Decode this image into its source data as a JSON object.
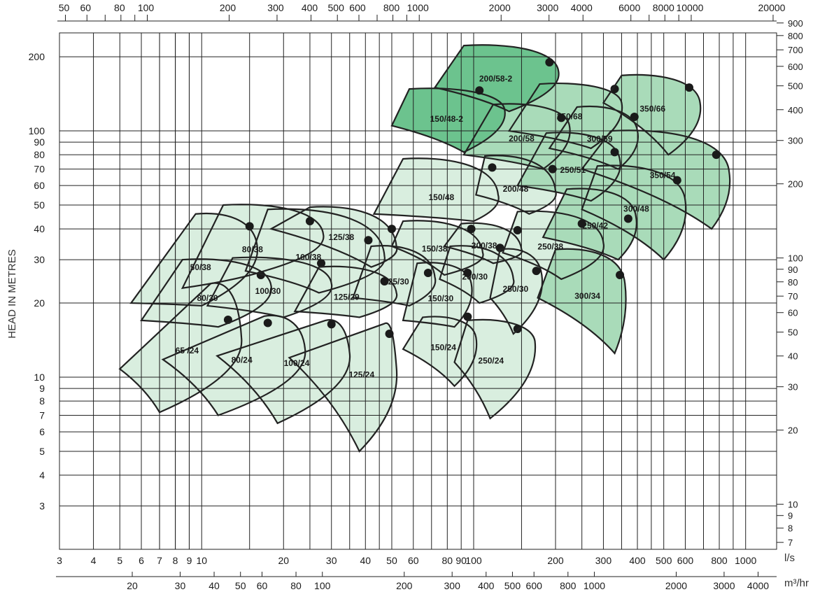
{
  "chart_data": {
    "type": "area",
    "title": "",
    "ylabel": "HEAD IN METRES",
    "units_bottom": "l/s",
    "units_lower": "m³/hr",
    "x_ls_range": [
      3,
      1300
    ],
    "y_m_range": [
      2.0,
      250
    ],
    "scale": "log-log",
    "ticks": {
      "left": [
        {
          "v": 200,
          "t": "200"
        },
        {
          "v": 100,
          "t": "100"
        },
        {
          "v": 90,
          "t": "90"
        },
        {
          "v": 80,
          "t": "80"
        },
        {
          "v": 70,
          "t": "70"
        },
        {
          "v": 60,
          "t": "60"
        },
        {
          "v": 50,
          "t": "50"
        },
        {
          "v": 40,
          "t": "40"
        },
        {
          "v": 30,
          "t": "30"
        },
        {
          "v": 20,
          "t": "20"
        },
        {
          "v": 10,
          "t": "10"
        },
        {
          "v": 9,
          "t": "9"
        },
        {
          "v": 8,
          "t": "8"
        },
        {
          "v": 7,
          "t": "7"
        },
        {
          "v": 6,
          "t": "6"
        },
        {
          "v": 5,
          "t": "5"
        },
        {
          "v": 4,
          "t": "4"
        },
        {
          "v": 3,
          "t": "3"
        }
      ],
      "bottom_ls": [
        {
          "v": 3,
          "t": "3"
        },
        {
          "v": 4,
          "t": "4"
        },
        {
          "v": 5,
          "t": "5"
        },
        {
          "v": 6,
          "t": "6"
        },
        {
          "v": 7,
          "t": "7"
        },
        {
          "v": 8,
          "t": "8"
        },
        {
          "v": 9,
          "t": "9"
        },
        {
          "v": 10,
          "t": "10"
        },
        {
          "v": 20,
          "t": "20"
        },
        {
          "v": 30,
          "t": "30"
        },
        {
          "v": 40,
          "t": "40"
        },
        {
          "v": 50,
          "t": "50"
        },
        {
          "v": 60,
          "t": "60"
        },
        {
          "v": 80,
          "t": "80"
        },
        {
          "v": 90,
          "t": "90"
        },
        {
          "v": 100,
          "t": "100"
        },
        {
          "v": 200,
          "t": "200"
        },
        {
          "v": 300,
          "t": "300"
        },
        {
          "v": 400,
          "t": "400"
        },
        {
          "v": 500,
          "t": "500"
        },
        {
          "v": 600,
          "t": "600"
        },
        {
          "v": 800,
          "t": "800"
        },
        {
          "v": 1000,
          "t": "1000"
        }
      ],
      "lower_m3hr": [
        {
          "v": 20,
          "t": "20"
        },
        {
          "v": 30,
          "t": "30"
        },
        {
          "v": 40,
          "t": "40"
        },
        {
          "v": 50,
          "t": "50"
        },
        {
          "v": 60,
          "t": "60"
        },
        {
          "v": 80,
          "t": "80"
        },
        {
          "v": 100,
          "t": "100"
        },
        {
          "v": 200,
          "t": "200"
        },
        {
          "v": 300,
          "t": "300"
        },
        {
          "v": 400,
          "t": "400"
        },
        {
          "v": 500,
          "t": "500"
        },
        {
          "v": 600,
          "t": "600"
        },
        {
          "v": 800,
          "t": "800"
        },
        {
          "v": 1000,
          "t": "1000"
        },
        {
          "v": 2000,
          "t": "2000"
        },
        {
          "v": 3000,
          "t": "3000"
        },
        {
          "v": 4000,
          "t": "4000"
        }
      ],
      "top_usgpm": [
        {
          "v": 50,
          "t": "50"
        },
        {
          "v": 60,
          "t": "60"
        },
        {
          "v": 80,
          "t": "80"
        },
        {
          "v": 100,
          "t": "100"
        },
        {
          "v": 200,
          "t": "200"
        },
        {
          "v": 300,
          "t": "300"
        },
        {
          "v": 400,
          "t": "400"
        },
        {
          "v": 500,
          "t": "500"
        },
        {
          "v": 600,
          "t": "600"
        },
        {
          "v": 800,
          "t": "800"
        },
        {
          "v": 1000,
          "t": "1000"
        },
        {
          "v": 2000,
          "t": "2000"
        },
        {
          "v": 3000,
          "t": "3000"
        },
        {
          "v": 4000,
          "t": "4000"
        },
        {
          "v": 6000,
          "t": "6000"
        },
        {
          "v": 8000,
          "t": "8000"
        },
        {
          "v": 10000,
          "t": "10000"
        },
        {
          "v": 20000,
          "t": "20000"
        }
      ],
      "right_ft": [
        {
          "v": 900,
          "t": "900"
        },
        {
          "v": 800,
          "t": "800"
        },
        {
          "v": 700,
          "t": "700"
        },
        {
          "v": 600,
          "t": "600"
        },
        {
          "v": 500,
          "t": "500"
        },
        {
          "v": 400,
          "t": "400"
        },
        {
          "v": 300,
          "t": "300"
        },
        {
          "v": 200,
          "t": "200"
        },
        {
          "v": 100,
          "t": "100"
        },
        {
          "v": 90,
          "t": "90"
        },
        {
          "v": 80,
          "t": "80"
        },
        {
          "v": 70,
          "t": "70"
        },
        {
          "v": 60,
          "t": "60"
        },
        {
          "v": 50,
          "t": "50"
        },
        {
          "v": 40,
          "t": "40"
        },
        {
          "v": 30,
          "t": "30"
        },
        {
          "v": 20,
          "t": "20"
        },
        {
          "v": 10,
          "t": "10"
        },
        {
          "v": 9,
          "t": "9"
        },
        {
          "v": 8,
          "t": "8"
        },
        {
          "v": 7,
          "t": "7"
        }
      ]
    },
    "colors": {
      "light": "#d9eedf",
      "mid": "#a9dbb9",
      "dark": "#6cc38e"
    },
    "series": [
      {
        "name": "65 /24",
        "shade": "light",
        "Q": [
          5.0,
          10.8,
          14.0,
          7.0,
          12.5
        ],
        "H": [
          10.8,
          24.0,
          14.5,
          7.2,
          17.1
        ]
      },
      {
        "name": "80/24",
        "shade": "light",
        "Q": [
          7.2,
          17.0,
          24.0,
          11.5,
          17.5
        ],
        "H": [
          11.8,
          17.7,
          13.0,
          7.0,
          16.6
        ]
      },
      {
        "name": "100/24",
        "shade": "light",
        "Q": [
          11.4,
          28.5,
          35.0,
          19.0,
          30.0
        ],
        "H": [
          12.2,
          17.0,
          12.5,
          6.5,
          16.4
        ]
      },
      {
        "name": "125/24",
        "shade": "light",
        "Q": [
          21.0,
          47.0,
          52.0,
          38.0,
          49.0
        ],
        "H": [
          12.0,
          16.5,
          11.0,
          5.0,
          15.0
        ]
      },
      {
        "name": "50/38",
        "shade": "light",
        "Q": [
          5.5,
          9.5,
          16.0,
          10.0,
          15.0
        ],
        "H": [
          20.0,
          46.0,
          34.0,
          19.5,
          41.0
        ]
      },
      {
        "name": "80/30",
        "shade": "light",
        "Q": [
          6.0,
          8.5,
          18.0,
          11.5,
          16.5
        ],
        "H": [
          17.0,
          30.0,
          23.5,
          16.0,
          26.0
        ]
      },
      {
        "name": "100/30",
        "shade": "light",
        "Q": [
          10.5,
          13.0,
          30.0,
          20.0,
          27.5
        ],
        "H": [
          19.5,
          30.5,
          24.0,
          17.5,
          29.0
        ]
      },
      {
        "name": "80/38",
        "shade": "light",
        "Q": [
          8.5,
          12.0,
          28.0,
          17.0,
          25.0
        ],
        "H": [
          23.0,
          50.0,
          38.0,
          27.0,
          43.0
        ]
      },
      {
        "name": "100/38",
        "shade": "light",
        "Q": [
          14.5,
          17.5,
          47.0,
          27.0,
          41.0
        ],
        "H": [
          27.0,
          48.0,
          31.0,
          22.0,
          36.0
        ]
      },
      {
        "name": "125/38",
        "shade": "light",
        "Q": [
          18.0,
          25.0,
          52.0,
          42.0,
          50.0
        ],
        "H": [
          40.0,
          49.0,
          34.0,
          28.0,
          40.0
        ]
      },
      {
        "name": "125/29",
        "shade": "light",
        "Q": [
          22.0,
          27.0,
          52.0,
          38.0,
          47.0
        ],
        "H": [
          18.5,
          28.0,
          22.0,
          17.5,
          24.5
        ]
      },
      {
        "name": "125/30",
        "shade": "light",
        "Q": [
          36.0,
          42.0,
          72.0,
          58.0,
          68.0
        ],
        "H": [
          21.0,
          34.0,
          25.5,
          19.5,
          26.5
        ]
      },
      {
        "name": "150/30",
        "shade": "light",
        "Q": [
          55.0,
          62.0,
          98.0,
          85.0,
          95.0
        ],
        "H": [
          17.0,
          29.0,
          24.0,
          16.0,
          26.5
        ]
      },
      {
        "name": "150/24",
        "shade": "light",
        "Q": [
          55.0,
          65.0,
          102.0,
          85.0,
          95.0
        ],
        "H": [
          13.0,
          17.5,
          14.5,
          9.2,
          17.6
        ]
      },
      {
        "name": "150/38",
        "shade": "light",
        "Q": [
          50.0,
          55.0,
          108.0,
          78.0,
          98.0
        ],
        "H": [
          34.0,
          43.0,
          32.0,
          26.0,
          40.0
        ]
      },
      {
        "name": "200/30",
        "shade": "light",
        "Q": [
          75.0,
          82.0,
          140.0,
          105.0,
          125.0
        ],
        "H": [
          25.0,
          34.0,
          25.0,
          20.0,
          33.5
        ]
      },
      {
        "name": "200/38",
        "shade": "light",
        "Q": [
          78.0,
          90.0,
          150.0,
          118.0,
          145.0
        ],
        "H": [
          34.0,
          42.0,
          33.0,
          29.0,
          39.5
        ]
      },
      {
        "name": "250/24",
        "shade": "light",
        "Q": [
          85.0,
          95.0,
          168.0,
          115.0,
          145.0
        ],
        "H": [
          11.5,
          17.0,
          14.0,
          6.8,
          15.7
        ]
      },
      {
        "name": "250/30",
        "shade": "light",
        "Q": [
          115.0,
          125.0,
          178.0,
          140.0,
          170.0
        ],
        "H": [
          21.0,
          33.0,
          26.0,
          15.0,
          27.0
        ]
      },
      {
        "name": "150/48",
        "shade": "light",
        "Q": [
          43.0,
          55.0,
          123.0,
          100.0,
          117.0
        ],
        "H": [
          46.0,
          77.0,
          55.0,
          43.0,
          71.0
        ]
      },
      {
        "name": "200/48",
        "shade": "light",
        "Q": [
          102.0,
          110.0,
          200.0,
          160.0,
          195.0
        ],
        "H": [
          55.0,
          79.0,
          57.0,
          46.0,
          70.0
        ]
      },
      {
        "name": "250/38",
        "shade": "light",
        "Q": [
          128.0,
          145.0,
          300.0,
          210.0,
          250.0
        ],
        "H": [
          32.0,
          47.0,
          35.0,
          25.0,
          42.0
        ]
      },
      {
        "name": "300/34",
        "shade": "mid",
        "Q": [
          172.0,
          200.0,
          360.0,
          330.0,
          345.0
        ],
        "H": [
          21.0,
          33.0,
          24.0,
          12.5,
          26.0
        ]
      },
      {
        "name": "250/42",
        "shade": "mid",
        "Q": [
          180.0,
          220.0,
          395.0,
          340.0,
          370.0
        ],
        "H": [
          37.0,
          58.0,
          45.0,
          30.0,
          44.0
        ]
      },
      {
        "name": "250/51",
        "shade": "mid",
        "Q": [
          145.0,
          185.0,
          345.0,
          270.0,
          330.0
        ],
        "H": [
          60.0,
          98.0,
          76.0,
          52.0,
          82.0
        ]
      },
      {
        "name": "200/58",
        "shade": "mid",
        "Q": [
          92.0,
          118.0,
          225.0,
          180.0,
          210.0
        ],
        "H": [
          80.0,
          128.0,
          105.0,
          70.0,
          113.0
        ]
      },
      {
        "name": "300/59",
        "shade": "mid",
        "Q": [
          190.0,
          240.0,
          400.0,
          340.0,
          390.0
        ],
        "H": [
          85.0,
          125.0,
          100.0,
          70.0,
          114.0
        ]
      },
      {
        "name": "250/68",
        "shade": "mid",
        "Q": [
          135.0,
          175.0,
          350.0,
          270.0,
          330.0
        ],
        "H": [
          100.0,
          155.0,
          130.0,
          85.0,
          148.0
        ]
      },
      {
        "name": "350/66",
        "shade": "mid",
        "Q": [
          300.0,
          350.0,
          680.0,
          520.0,
          620.0
        ],
        "H": [
          130.0,
          168.0,
          130.0,
          80.0,
          150.0
        ]
      },
      {
        "name": "350/54",
        "shade": "mid",
        "Q": [
          250.0,
          320.0,
          870.0,
          750.0,
          780.0
        ],
        "H": [
          70.0,
          100.0,
          68.0,
          40.0,
          80.0
        ]
      },
      {
        "name": "300/48",
        "shade": "mid",
        "Q": [
          250.0,
          285.0,
          600.0,
          500.0,
          560.0
        ],
        "H": [
          48.0,
          72.0,
          52.0,
          30.0,
          63.0
        ]
      },
      {
        "name": "150/48-2",
        "shade": "dark",
        "Q": [
          50.0,
          58.0,
          130.0,
          92.0,
          105.0
        ],
        "H": [
          105.0,
          148.0,
          122.0,
          82.0,
          146.0
        ]
      },
      {
        "name": "200/58-2",
        "shade": "dark",
        "Q": [
          72.0,
          92.0,
          205.0,
          135.0,
          190.0
        ],
        "H": [
          150.0,
          222.0,
          175.0,
          120.0,
          190.0
        ]
      }
    ]
  }
}
